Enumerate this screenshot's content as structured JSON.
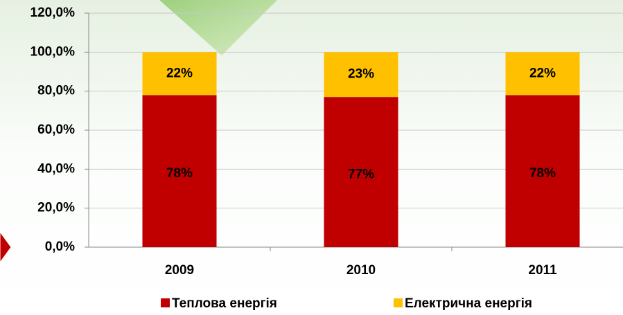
{
  "chart_data": {
    "type": "stacked_bar",
    "categories": [
      "2009",
      "2010",
      "2011"
    ],
    "series": [
      {
        "name": "Теплова енергія",
        "color": "#c00000",
        "values": [
          78,
          77,
          78
        ],
        "value_labels": [
          "78%",
          "77%",
          "78%"
        ]
      },
      {
        "name": "Електрична енергія",
        "color": "#ffc000",
        "values": [
          22,
          23,
          22
        ],
        "value_labels": [
          "22%",
          "23%",
          "22%"
        ]
      }
    ],
    "ylim": [
      0,
      120
    ],
    "yticks": [
      {
        "value": 0,
        "label": "0,0%"
      },
      {
        "value": 20,
        "label": "20,0%"
      },
      {
        "value": 40,
        "label": "40,0%"
      },
      {
        "value": 60,
        "label": "60,0%"
      },
      {
        "value": 80,
        "label": "80,0%"
      },
      {
        "value": 100,
        "label": "100,0%"
      },
      {
        "value": 120,
        "label": "120,0%"
      }
    ],
    "grid": true,
    "legend": "bottom"
  }
}
